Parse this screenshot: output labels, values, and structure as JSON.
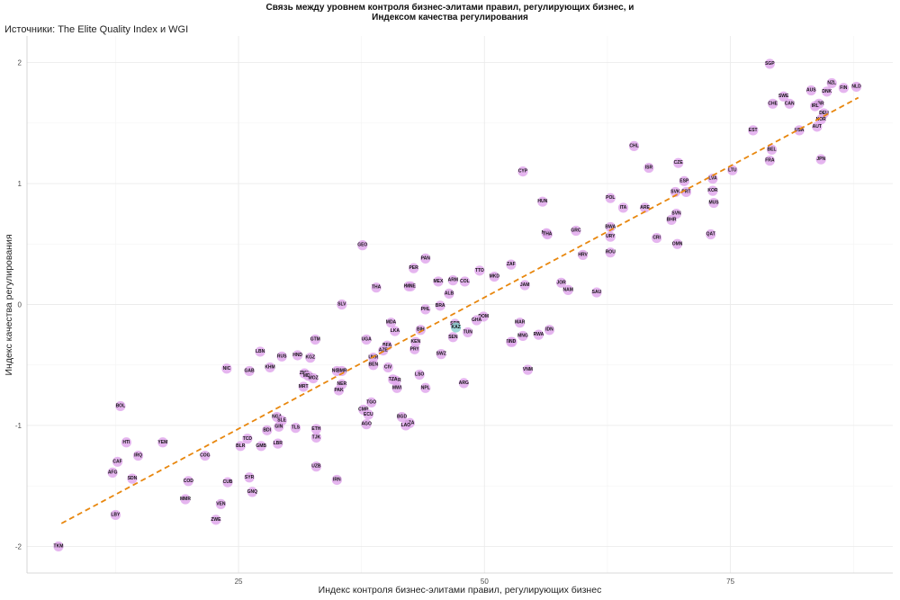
{
  "chart_data": {
    "type": "scatter",
    "title_lines": [
      "Связь между уровнем контроля бизнес-элитами правил, регулирующих бизнес, и",
      "Индексом качества регулирования"
    ],
    "subtitle": "Источники: The Elite Quality Index и WGI",
    "xlabel": "Индекс контроля бизнес-элитами правил, регулирующих бизнес",
    "ylabel": "Индекс качества регулирования",
    "xlim": [
      3.5,
      91.5
    ],
    "ylim": [
      -2.22,
      2.22
    ],
    "x_ticks": [
      25,
      50,
      75
    ],
    "y_ticks": [
      -2,
      -1,
      0,
      1,
      2
    ],
    "grid": true,
    "trend_line": {
      "color": "#e8870e",
      "style": "dashed",
      "x": [
        7,
        88
      ],
      "y": [
        -1.81,
        1.71
      ]
    },
    "point_color": "#e0a8ec",
    "points": [
      {
        "label": "SGP",
        "x": 79.0,
        "y": 1.99
      },
      {
        "label": "NZL",
        "x": 85.3,
        "y": 1.83
      },
      {
        "label": "FIN",
        "x": 86.5,
        "y": 1.79
      },
      {
        "label": "NLD",
        "x": 87.8,
        "y": 1.8
      },
      {
        "label": "AUS",
        "x": 83.2,
        "y": 1.77
      },
      {
        "label": "DNK",
        "x": 84.8,
        "y": 1.76
      },
      {
        "label": "CHE",
        "x": 79.3,
        "y": 1.66
      },
      {
        "label": "SWE",
        "x": 80.4,
        "y": 1.72
      },
      {
        "label": "CAN",
        "x": 81.0,
        "y": 1.66
      },
      {
        "label": "GBR",
        "x": 84.0,
        "y": 1.66
      },
      {
        "label": "IRL",
        "x": 83.6,
        "y": 1.64
      },
      {
        "label": "DEU",
        "x": 84.5,
        "y": 1.58
      },
      {
        "label": "NOR",
        "x": 84.2,
        "y": 1.53
      },
      {
        "label": "AUT",
        "x": 83.8,
        "y": 1.47
      },
      {
        "label": "USA",
        "x": 82.0,
        "y": 1.44
      },
      {
        "label": "EST",
        "x": 77.3,
        "y": 1.44
      },
      {
        "label": "BEL",
        "x": 79.2,
        "y": 1.28
      },
      {
        "label": "FRA",
        "x": 79.0,
        "y": 1.19
      },
      {
        "label": "JPN",
        "x": 84.2,
        "y": 1.2
      },
      {
        "label": "CHL",
        "x": 65.2,
        "y": 1.31
      },
      {
        "label": "CZE",
        "x": 69.7,
        "y": 1.17
      },
      {
        "label": "ISR",
        "x": 66.7,
        "y": 1.13
      },
      {
        "label": "LTU",
        "x": 75.2,
        "y": 1.11
      },
      {
        "label": "CYP",
        "x": 53.9,
        "y": 1.1
      },
      {
        "label": "LVA",
        "x": 73.2,
        "y": 1.04
      },
      {
        "label": "ESP",
        "x": 70.3,
        "y": 1.02
      },
      {
        "label": "SVK",
        "x": 69.4,
        "y": 0.93
      },
      {
        "label": "PRT",
        "x": 70.5,
        "y": 0.93
      },
      {
        "label": "KOR",
        "x": 73.2,
        "y": 0.94
      },
      {
        "label": "POL",
        "x": 62.8,
        "y": 0.88
      },
      {
        "label": "HUN",
        "x": 55.9,
        "y": 0.85
      },
      {
        "label": "MUS",
        "x": 73.3,
        "y": 0.84
      },
      {
        "label": "ITA",
        "x": 64.1,
        "y": 0.8
      },
      {
        "label": "ARE",
        "x": 66.3,
        "y": 0.8
      },
      {
        "label": "SVN",
        "x": 69.5,
        "y": 0.75
      },
      {
        "label": "BHR",
        "x": 69.0,
        "y": 0.7
      },
      {
        "label": "BWA",
        "x": 62.8,
        "y": 0.64
      },
      {
        "label": "GRC",
        "x": 59.3,
        "y": 0.61
      },
      {
        "label": "MYS",
        "x": 56.3,
        "y": 0.59
      },
      {
        "label": "QAT",
        "x": 73.0,
        "y": 0.58
      },
      {
        "label": "THA",
        "x": 56.4,
        "y": 0.58
      },
      {
        "label": "URY",
        "x": 62.8,
        "y": 0.56
      },
      {
        "label": "CRI",
        "x": 67.5,
        "y": 0.55
      },
      {
        "label": "OMN",
        "x": 69.6,
        "y": 0.5
      },
      {
        "label": "GEO",
        "x": 37.6,
        "y": 0.49
      },
      {
        "label": "HRV",
        "x": 60.0,
        "y": 0.41
      },
      {
        "label": "ROU",
        "x": 62.8,
        "y": 0.43
      },
      {
        "label": "PAN",
        "x": 44.0,
        "y": 0.38
      },
      {
        "label": "ZAF",
        "x": 52.7,
        "y": 0.33
      },
      {
        "label": "PER",
        "x": 42.8,
        "y": 0.3
      },
      {
        "label": "TTO",
        "x": 49.5,
        "y": 0.28
      },
      {
        "label": "MKD",
        "x": 51.0,
        "y": 0.23
      },
      {
        "label": "MEX",
        "x": 45.3,
        "y": 0.19
      },
      {
        "label": "ARM",
        "x": 46.8,
        "y": 0.2
      },
      {
        "label": "COL",
        "x": 48.0,
        "y": 0.19
      },
      {
        "label": "JOR",
        "x": 57.8,
        "y": 0.18
      },
      {
        "label": "JAM",
        "x": 54.1,
        "y": 0.16
      },
      {
        "label": "KSR",
        "x": 42.3,
        "y": 0.15
      },
      {
        "label": "MNE",
        "x": 42.5,
        "y": 0.15
      },
      {
        "label": "NAM",
        "x": 58.5,
        "y": 0.12
      },
      {
        "label": "THA",
        "x": 39.0,
        "y": 0.14
      },
      {
        "label": "SAU",
        "x": 61.4,
        "y": 0.1
      },
      {
        "label": "ALB",
        "x": 46.4,
        "y": 0.09
      },
      {
        "label": "SLV",
        "x": 35.5,
        "y": 0.0
      },
      {
        "label": "BRA",
        "x": 45.5,
        "y": -0.01
      },
      {
        "label": "PHL",
        "x": 44.0,
        "y": -0.04
      },
      {
        "label": "DOM",
        "x": 49.9,
        "y": -0.1
      },
      {
        "label": "GHA",
        "x": 49.2,
        "y": -0.13
      },
      {
        "label": "MDA",
        "x": 40.5,
        "y": -0.15
      },
      {
        "label": "SRB",
        "x": 47.0,
        "y": -0.16
      },
      {
        "label": "MAR",
        "x": 53.6,
        "y": -0.15
      },
      {
        "label": "KAZ",
        "x": 47.1,
        "y": -0.19
      },
      {
        "label": "IDN",
        "x": 56.6,
        "y": -0.21
      },
      {
        "label": "BIH",
        "x": 43.5,
        "y": -0.21
      },
      {
        "label": "LKA",
        "x": 40.9,
        "y": -0.22
      },
      {
        "label": "TUN",
        "x": 48.3,
        "y": -0.23
      },
      {
        "label": "RWA",
        "x": 55.5,
        "y": -0.25
      },
      {
        "label": "MNG",
        "x": 53.9,
        "y": -0.26
      },
      {
        "label": "SEN",
        "x": 46.8,
        "y": -0.27
      },
      {
        "label": "PRY",
        "x": 42.9,
        "y": -0.37
      },
      {
        "label": "EGY",
        "x": 52.7,
        "y": -0.31
      },
      {
        "label": "IND",
        "x": 52.8,
        "y": -0.31
      },
      {
        "label": "KEN",
        "x": 43.0,
        "y": -0.31
      },
      {
        "label": "UGA",
        "x": 38.0,
        "y": -0.29
      },
      {
        "label": "GTM",
        "x": 32.8,
        "y": -0.29
      },
      {
        "label": "BFA",
        "x": 40.1,
        "y": -0.34
      },
      {
        "label": "AZE",
        "x": 39.7,
        "y": -0.38
      },
      {
        "label": "LBN",
        "x": 27.2,
        "y": -0.39
      },
      {
        "label": "SWZ",
        "x": 45.6,
        "y": -0.41
      },
      {
        "label": "RUS",
        "x": 29.4,
        "y": -0.43
      },
      {
        "label": "HND",
        "x": 31.0,
        "y": -0.42
      },
      {
        "label": "KGZ",
        "x": 32.3,
        "y": -0.44
      },
      {
        "label": "UKR",
        "x": 38.7,
        "y": -0.44
      },
      {
        "label": "BEN",
        "x": 38.7,
        "y": -0.5
      },
      {
        "label": "NIC",
        "x": 23.8,
        "y": -0.53
      },
      {
        "label": "KHM",
        "x": 28.2,
        "y": -0.52
      },
      {
        "label": "GAB",
        "x": 26.1,
        "y": -0.55
      },
      {
        "label": "CIV",
        "x": 40.2,
        "y": -0.52
      },
      {
        "label": "NGA",
        "x": 35.0,
        "y": -0.55
      },
      {
        "label": "BMR",
        "x": 35.5,
        "y": -0.55
      },
      {
        "label": "ZMB",
        "x": 31.7,
        "y": -0.57
      },
      {
        "label": "MDG",
        "x": 32.1,
        "y": -0.59
      },
      {
        "label": "MOZ",
        "x": 32.6,
        "y": -0.61
      },
      {
        "label": "LSO",
        "x": 43.4,
        "y": -0.58
      },
      {
        "label": "CMR",
        "x": 41.0,
        "y": -0.63
      },
      {
        "label": "TZA",
        "x": 40.7,
        "y": -0.62
      },
      {
        "label": "MWI",
        "x": 41.1,
        "y": -0.69
      },
      {
        "label": "NER",
        "x": 35.5,
        "y": -0.66
      },
      {
        "label": "MRT",
        "x": 31.6,
        "y": -0.68
      },
      {
        "label": "PAK",
        "x": 35.2,
        "y": -0.71
      },
      {
        "label": "NPL",
        "x": 44.0,
        "y": -0.69
      },
      {
        "label": "ARG",
        "x": 47.9,
        "y": -0.65
      },
      {
        "label": "VNM",
        "x": 54.4,
        "y": -0.54
      },
      {
        "label": "TGO",
        "x": 38.5,
        "y": -0.81
      },
      {
        "label": "BOL",
        "x": 13.0,
        "y": -0.84
      },
      {
        "label": "CMR",
        "x": 37.7,
        "y": -0.87
      },
      {
        "label": "ECU",
        "x": 38.2,
        "y": -0.91
      },
      {
        "label": "NGA",
        "x": 28.9,
        "y": -0.93
      },
      {
        "label": "BGD",
        "x": 41.6,
        "y": -0.93
      },
      {
        "label": "SLE",
        "x": 29.4,
        "y": -0.96
      },
      {
        "label": "GIN",
        "x": 29.1,
        "y": -1.01
      },
      {
        "label": "DZA",
        "x": 42.4,
        "y": -0.98
      },
      {
        "label": "LAO",
        "x": 42.0,
        "y": -1.0
      },
      {
        "label": "AGO",
        "x": 38.0,
        "y": -0.99
      },
      {
        "label": "TLS",
        "x": 30.8,
        "y": -1.02
      },
      {
        "label": "ETH",
        "x": 32.9,
        "y": -1.03
      },
      {
        "label": "BDI",
        "x": 27.9,
        "y": -1.04
      },
      {
        "label": "TCD",
        "x": 25.9,
        "y": -1.11
      },
      {
        "label": "TJK",
        "x": 32.9,
        "y": -1.1
      },
      {
        "label": "HTI",
        "x": 13.6,
        "y": -1.14
      },
      {
        "label": "YEM",
        "x": 17.3,
        "y": -1.14
      },
      {
        "label": "LBR",
        "x": 29.0,
        "y": -1.15
      },
      {
        "label": "BLR",
        "x": 25.2,
        "y": -1.17
      },
      {
        "label": "GMB",
        "x": 27.3,
        "y": -1.17
      },
      {
        "label": "IRQ",
        "x": 14.8,
        "y": -1.25
      },
      {
        "label": "COG",
        "x": 21.6,
        "y": -1.25
      },
      {
        "label": "CAF",
        "x": 12.7,
        "y": -1.3
      },
      {
        "label": "UZB",
        "x": 32.9,
        "y": -1.34
      },
      {
        "label": "AFG",
        "x": 12.2,
        "y": -1.39
      },
      {
        "label": "SDN",
        "x": 14.2,
        "y": -1.44
      },
      {
        "label": "SYR",
        "x": 26.1,
        "y": -1.43
      },
      {
        "label": "IRN",
        "x": 35.0,
        "y": -1.45
      },
      {
        "label": "COD",
        "x": 19.9,
        "y": -1.46
      },
      {
        "label": "CUB",
        "x": 23.9,
        "y": -1.47
      },
      {
        "label": "GNQ",
        "x": 26.4,
        "y": -1.55
      },
      {
        "label": "MMR",
        "x": 19.6,
        "y": -1.61
      },
      {
        "label": "VEN",
        "x": 23.2,
        "y": -1.65
      },
      {
        "label": "LBY",
        "x": 12.5,
        "y": -1.74
      },
      {
        "label": "ZWE",
        "x": 22.7,
        "y": -1.78
      },
      {
        "label": "TKM",
        "x": 6.7,
        "y": -2.0
      }
    ],
    "highlighted": [
      "KAZ"
    ]
  }
}
